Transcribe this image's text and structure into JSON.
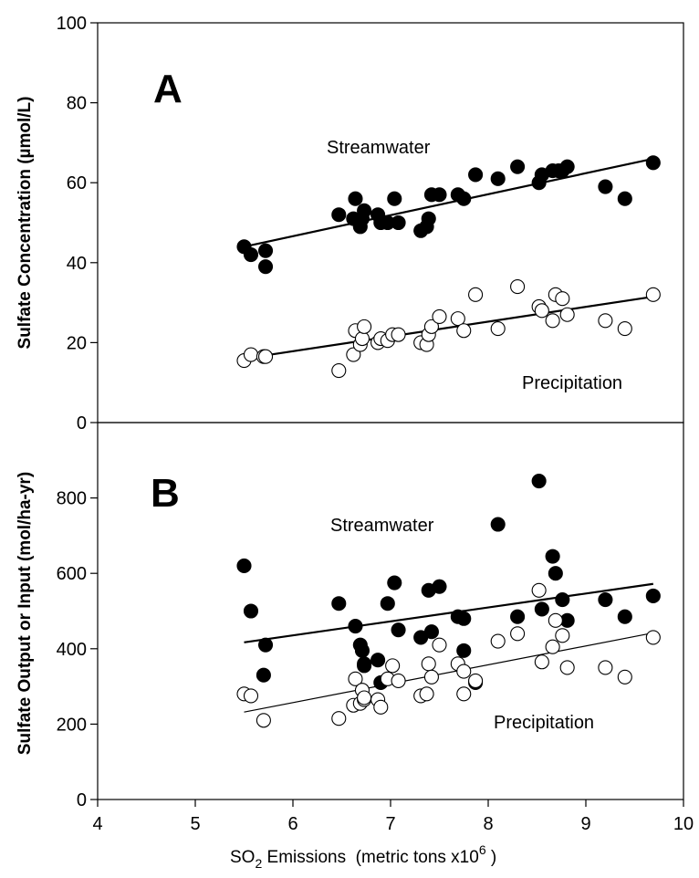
{
  "chart_data": [
    {
      "panel": "A",
      "type": "scatter",
      "ylabel": "Sulfate Concentration (µmol/L)",
      "xlabel": "",
      "xlim": [
        4,
        10
      ],
      "ylim": [
        0,
        100
      ],
      "yticks": [
        0,
        20,
        40,
        60,
        80,
        100
      ],
      "grid": false,
      "series": [
        {
          "name": "Streamwater",
          "marker": "filled-circle",
          "color": "#000000",
          "x": [
            5.5,
            5.57,
            5.72,
            5.72,
            6.47,
            6.62,
            6.64,
            6.69,
            6.71,
            6.73,
            6.87,
            6.9,
            6.97,
            7.04,
            7.08,
            7.31,
            7.37,
            7.39,
            7.42,
            7.5,
            7.69,
            7.75,
            7.87,
            8.1,
            8.3,
            8.52,
            8.55,
            8.66,
            8.72,
            8.76,
            8.81,
            9.2,
            9.4,
            9.69
          ],
          "y": [
            44,
            42,
            43,
            39,
            52,
            51,
            56,
            49,
            51,
            53,
            52,
            50,
            50,
            56,
            50,
            48,
            49,
            51,
            57,
            57,
            57,
            56,
            62,
            61,
            64,
            60,
            62,
            63,
            63,
            63,
            64,
            59,
            56,
            65
          ],
          "trend": [
            [
              5.5,
              44.0
            ],
            [
              9.69,
              66.0
            ]
          ]
        },
        {
          "name": "Precipitation",
          "marker": "open-circle",
          "color": "#000000",
          "x": [
            5.5,
            5.57,
            5.7,
            5.72,
            6.47,
            6.62,
            6.64,
            6.69,
            6.71,
            6.73,
            6.87,
            6.9,
            6.97,
            7.02,
            7.08,
            7.31,
            7.37,
            7.39,
            7.42,
            7.5,
            7.69,
            7.75,
            7.87,
            8.1,
            8.3,
            8.52,
            8.55,
            8.66,
            8.69,
            8.76,
            8.81,
            9.2,
            9.4,
            9.69
          ],
          "y": [
            15.5,
            17,
            16.5,
            16.5,
            13,
            17,
            23,
            19.5,
            21,
            24,
            20,
            21,
            20.5,
            22,
            22,
            20,
            19.5,
            22,
            24,
            26.5,
            26,
            23,
            32,
            23.5,
            34,
            29,
            28,
            25.5,
            32,
            31,
            27,
            25.5,
            23.5,
            32
          ],
          "trend": [
            [
              5.5,
              16.0
            ],
            [
              9.69,
              31.5
            ]
          ]
        }
      ]
    },
    {
      "panel": "B",
      "type": "scatter",
      "ylabel": "Sulfate Output or Input (mol/ha-yr)",
      "xlabel": "SO₂ Emissions (metric tons x10⁶ )",
      "xlim": [
        4,
        10
      ],
      "ylim": [
        0,
        1000
      ],
      "yticks": [
        0,
        200,
        400,
        600,
        800
      ],
      "xticks": [
        4,
        5,
        6,
        7,
        8,
        9,
        10
      ],
      "grid": false,
      "series": [
        {
          "name": "Streamwater",
          "marker": "filled-circle",
          "color": "#000000",
          "x": [
            5.5,
            5.57,
            5.7,
            5.72,
            6.47,
            6.64,
            6.69,
            6.71,
            6.73,
            6.73,
            6.87,
            6.9,
            6.97,
            7.04,
            7.08,
            7.31,
            7.39,
            7.42,
            7.5,
            7.69,
            7.75,
            7.75,
            7.87,
            8.1,
            8.3,
            8.52,
            8.55,
            8.66,
            8.69,
            8.76,
            8.81,
            9.2,
            9.4,
            9.69
          ],
          "y": [
            620,
            500,
            330,
            410,
            520,
            460,
            410,
            395,
            360,
            355,
            370,
            310,
            520,
            575,
            450,
            430,
            555,
            445,
            565,
            485,
            480,
            395,
            310,
            730,
            485,
            845,
            505,
            645,
            600,
            530,
            475,
            530,
            485,
            540
          ],
          "trend": [
            [
              5.5,
              417
            ],
            [
              9.69,
              572
            ]
          ]
        },
        {
          "name": "Precipitation",
          "marker": "open-circle",
          "color": "#000000",
          "x": [
            5.5,
            5.57,
            5.7,
            6.47,
            6.62,
            6.64,
            6.69,
            6.71,
            6.73,
            6.73,
            6.87,
            6.9,
            6.97,
            7.02,
            7.08,
            7.31,
            7.37,
            7.39,
            7.42,
            7.5,
            7.69,
            7.75,
            7.75,
            7.87,
            8.1,
            8.3,
            8.52,
            8.55,
            8.66,
            8.69,
            8.76,
            8.81,
            9.2,
            9.4,
            9.69
          ],
          "y": [
            280,
            275,
            210,
            215,
            250,
            320,
            255,
            290,
            265,
            270,
            265,
            245,
            320,
            355,
            315,
            275,
            280,
            360,
            325,
            410,
            360,
            280,
            340,
            315,
            420,
            440,
            555,
            365,
            405,
            475,
            435,
            350,
            350,
            325,
            430
          ],
          "trend": [
            [
              5.5,
              232
            ],
            [
              9.69,
              442
            ]
          ]
        }
      ]
    }
  ],
  "labels": {
    "panel_a_letter": "A",
    "panel_b_letter": "B",
    "panel_a_stream_label": "Streamwater",
    "panel_a_precip_label": "Precipitation",
    "panel_b_stream_label": "Streamwater",
    "panel_b_precip_label": "Precipitation",
    "ylabel_a": "Sulfate Concentration (µmol/L)",
    "ylabel_b": "Sulfate Output or Input (mol/ha-yr)",
    "xlabel_prefix": "SO",
    "xlabel_sub": "2",
    "xlabel_middle": " Emissions  (metric tons x10",
    "xlabel_sup": "6",
    "xlabel_suffix": " )"
  }
}
